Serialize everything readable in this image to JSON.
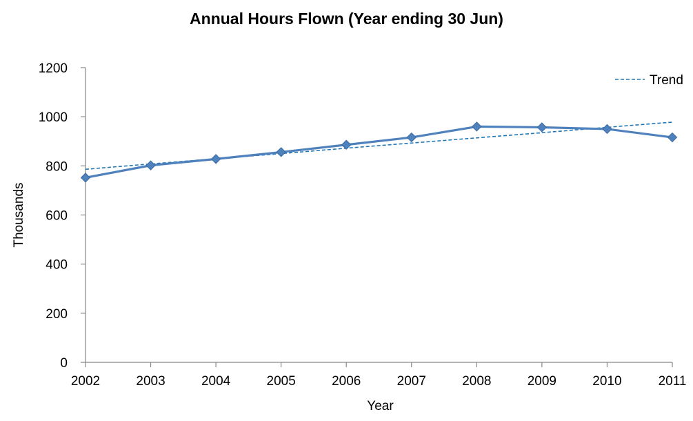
{
  "chart_data": {
    "type": "line",
    "title": "Annual Hours Flown (Year ending 30 Jun)",
    "xlabel": "Year",
    "ylabel": "Thousands",
    "x": [
      "2002",
      "2003",
      "2004",
      "2005",
      "2006",
      "2007",
      "2008",
      "2009",
      "2010",
      "2011"
    ],
    "ylim": [
      0,
      1200
    ],
    "yticks": [
      0,
      200,
      400,
      600,
      800,
      1000,
      1200
    ],
    "grid": false,
    "legend_position": "top-right",
    "series": [
      {
        "values": [
          752,
          802,
          828,
          856,
          886,
          916,
          960,
          957,
          950,
          916
        ],
        "color": "#4F81BD",
        "marker": "diamond"
      },
      {
        "name": "Trend",
        "style": "dashed",
        "color": "#1F77B4",
        "values": [
          786,
          808,
          829,
          850,
          872,
          893,
          914,
          935,
          957,
          978
        ]
      }
    ]
  }
}
